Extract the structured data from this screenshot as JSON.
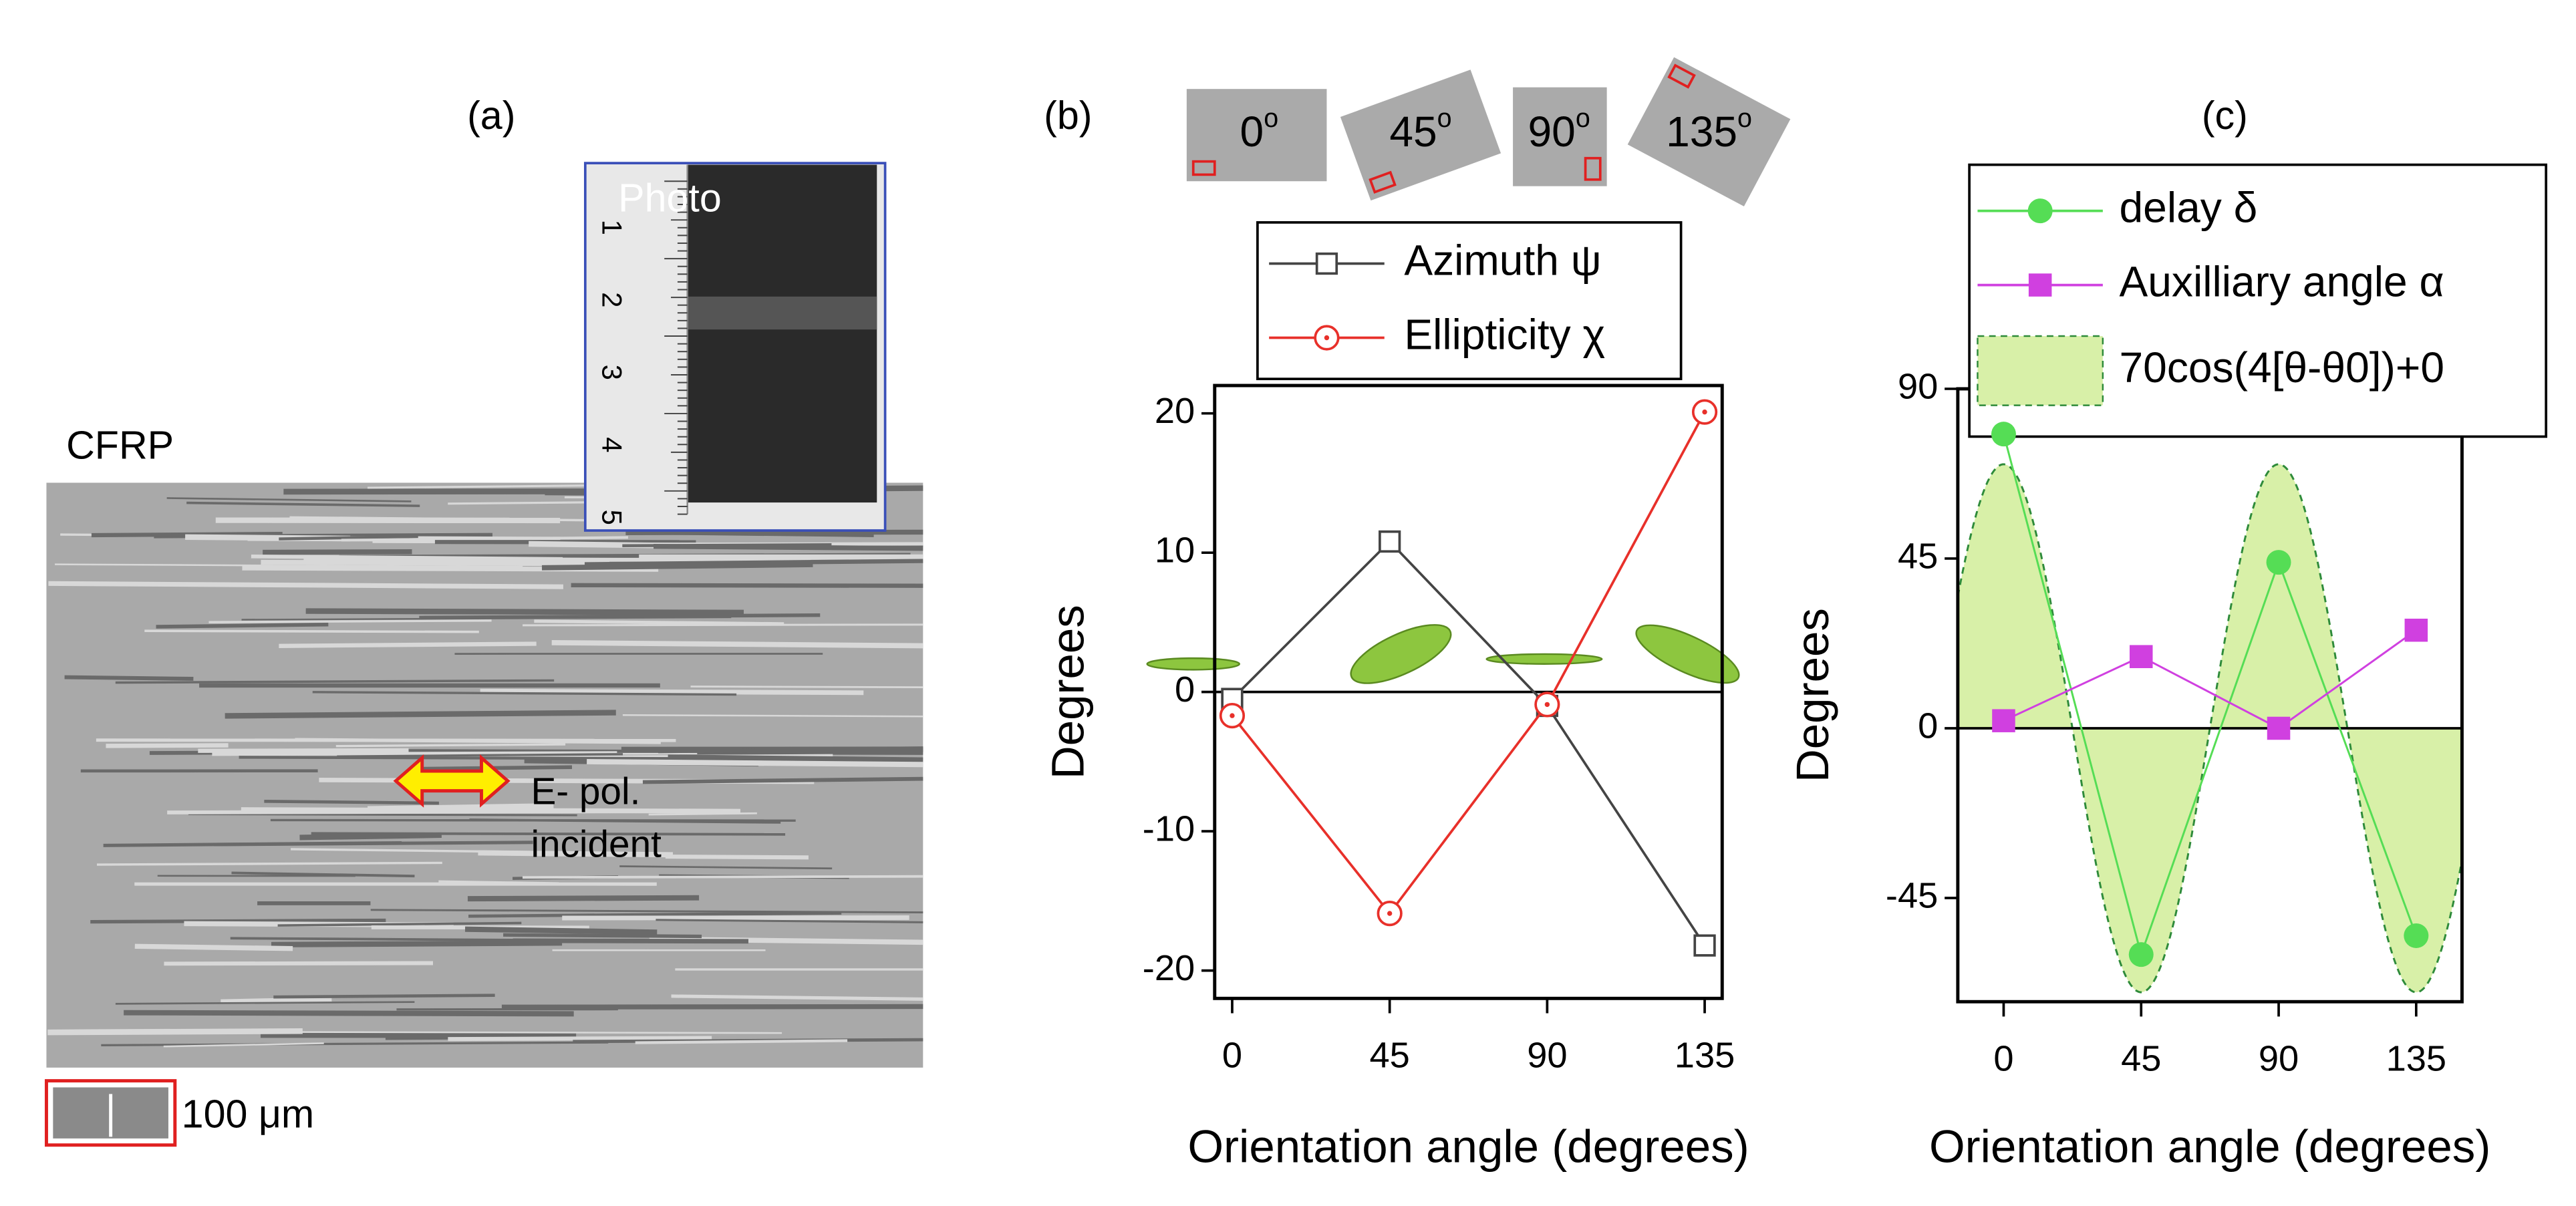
{
  "panel_a": {
    "label": "(a)",
    "sample": "CFRP",
    "inset_label": "Photo",
    "ruler": [
      "1",
      "2",
      "3",
      "4",
      "5"
    ],
    "arrow_label": [
      "E- pol.",
      "incident"
    ],
    "scale_bar": "100 μm"
  },
  "chart_data": [
    {
      "type": "line",
      "panel_label": "(b)",
      "samples": [
        {
          "angle": "0",
          "sup": "o"
        },
        {
          "angle": "45",
          "sup": "o"
        },
        {
          "angle": "90",
          "sup": "o"
        },
        {
          "angle": "135",
          "sup": "o"
        }
      ],
      "xlabel": "Orientation angle (degrees)",
      "ylabel": "Degrees",
      "x": [
        0,
        45,
        90,
        135
      ],
      "xlim": [
        -5,
        140
      ],
      "xticks": [
        0,
        45,
        90,
        135
      ],
      "ylim": [
        -22,
        22
      ],
      "yticks": [
        20,
        10,
        0,
        -10,
        -20
      ],
      "zero_line": true,
      "series": [
        {
          "name": "Azimuth ψ",
          "color": "#444444",
          "marker": "square-open",
          "values": [
            -0.5,
            10.8,
            -1,
            -18.2
          ]
        },
        {
          "name": "Ellipticity χ",
          "color": "#e8302a",
          "marker": "circle-dot",
          "values": [
            -1.7,
            -15.9,
            -0.9,
            20.1
          ]
        }
      ]
    },
    {
      "type": "line",
      "panel_label": "(c)",
      "xlabel": "Orientation angle (degrees)",
      "ylabel": "Degrees",
      "x": [
        0,
        45,
        90,
        135
      ],
      "xlim": [
        -15,
        150
      ],
      "xticks": [
        0,
        45,
        90,
        135
      ],
      "ylim": [
        -72.5,
        90
      ],
      "yticks": [
        90,
        45,
        0,
        -45
      ],
      "zero_line": true,
      "series": [
        {
          "name": "delay δ",
          "color": "#55dd55",
          "marker": "circle",
          "values": [
            78,
            -60,
            44,
            -55
          ]
        },
        {
          "name": "Auxilliary angle α",
          "color": "#d040e0",
          "marker": "square",
          "values": [
            2,
            19,
            0,
            26
          ]
        }
      ],
      "fill": {
        "name": "70cos(4[θ-θ0])+0",
        "color": "#d8f0a8",
        "edge": "#2e8b3a",
        "amplitude": 70,
        "frequency": 4,
        "theta0": 0,
        "offset": 0
      }
    }
  ]
}
